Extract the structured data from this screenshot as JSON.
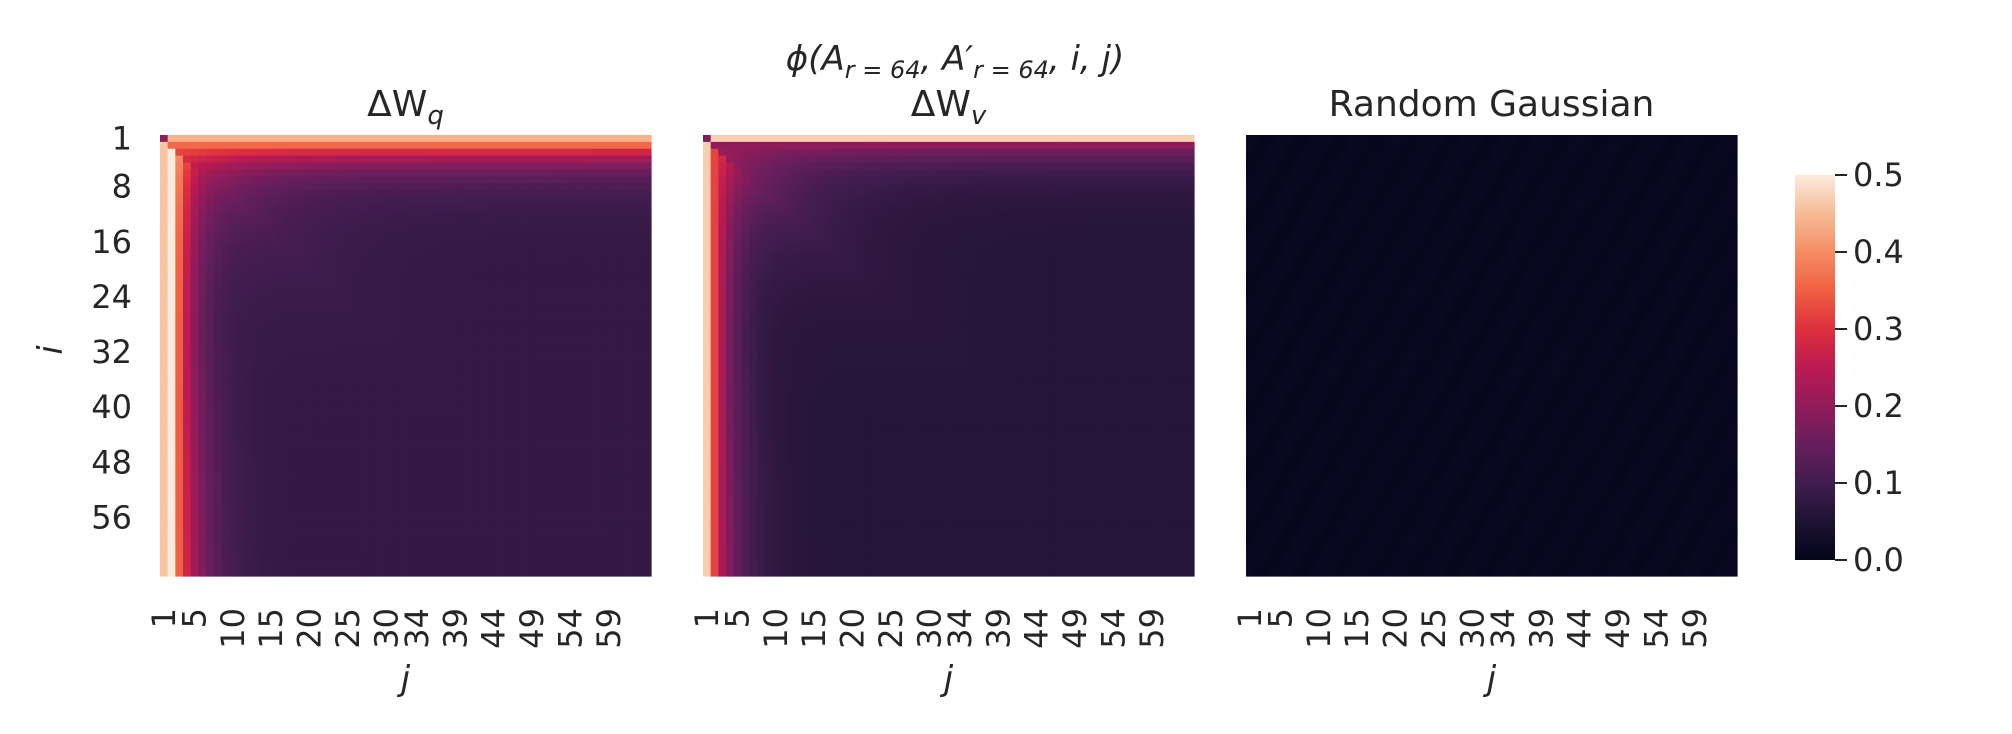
{
  "chart_data": {
    "type": "heatmap",
    "suptitle": "ϕ(A_{r=64}, A′_{r=64}, i, j)",
    "colormap": "rocket",
    "color_range": [
      0.0,
      0.5
    ],
    "colorbar_ticks": [
      "0.0",
      "0.1",
      "0.2",
      "0.3",
      "0.4",
      "0.5"
    ],
    "ylabel": "i",
    "y_ticks": [
      "1",
      "8",
      "16",
      "24",
      "32",
      "40",
      "48",
      "56"
    ],
    "x_ticks": [
      "1",
      "5",
      "10",
      "15",
      "20",
      "25",
      "30",
      "34",
      "39",
      "44",
      "49",
      "54",
      "59"
    ],
    "grid_size": 64,
    "panels": [
      {
        "title_base": "ΔW",
        "title_sub": "q",
        "xlabel": "j",
        "row1_value": 0.44,
        "col1_value": 0.46,
        "near_first_col": 0.5,
        "top_row_value": 0.36,
        "diagonal_min": 0.08,
        "bottom_right": 0.08
      },
      {
        "title_base": "ΔW",
        "title_sub": "v",
        "xlabel": "j",
        "row1_value": 0.47,
        "col1_value": 0.47,
        "near_first_col": 0.32,
        "top_row_value": 0.2,
        "diagonal_min": 0.06,
        "bottom_right": 0.06
      },
      {
        "title": "Random Gaussian",
        "xlabel": "j",
        "value": 0.01
      }
    ]
  }
}
